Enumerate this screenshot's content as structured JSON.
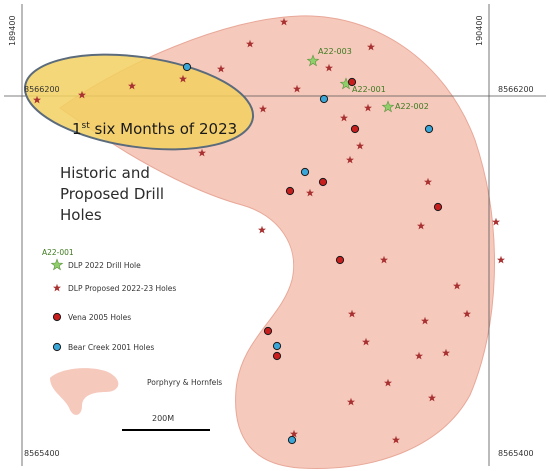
{
  "grid": {
    "easting_left": "189400",
    "easting_right": "190400",
    "northing_top_left": "8566200",
    "northing_top_right": "8566200",
    "northing_bottom_left": "8565400",
    "northing_bottom_right": "8565400"
  },
  "title": {
    "line1": "Historic and",
    "line2": "Proposed Drill",
    "line3": "Holes"
  },
  "highlight": {
    "label_prefix": "1",
    "label_superscript": "st",
    "label_rest": " six Months of 2023"
  },
  "drill_holes_2022": [
    {
      "id": "A22-003"
    },
    {
      "id": "A22-001"
    },
    {
      "id": "A22-002"
    }
  ],
  "legend": {
    "sample_label": "A22-001",
    "items": [
      {
        "label": "DLP 2022 Drill Hole",
        "symbol": "green-star-icon"
      },
      {
        "label": "DLP Proposed 2022-23 Holes",
        "symbol": "red-star-icon"
      },
      {
        "label": "Vena 2005 Holes",
        "symbol": "red-circle-icon"
      },
      {
        "label": "Bear Creek 2001 Holes",
        "symbol": "blue-circle-icon"
      },
      {
        "label": "Porphyry & Hornfels",
        "symbol": "pink-area-icon"
      }
    ]
  },
  "scale_bar": {
    "label": "200M"
  },
  "colors": {
    "porphyry_fill": "#f6c9bd",
    "porphyry_stroke": "#e8a898",
    "highlight_fill": "#f2d060",
    "highlight_stroke": "#5b6b7c",
    "proposed_star": "#a83232",
    "drill_star": "#8fcf6a",
    "vena_circle": "#c81e1e",
    "bear_creek_circle": "#3aa6d8"
  }
}
